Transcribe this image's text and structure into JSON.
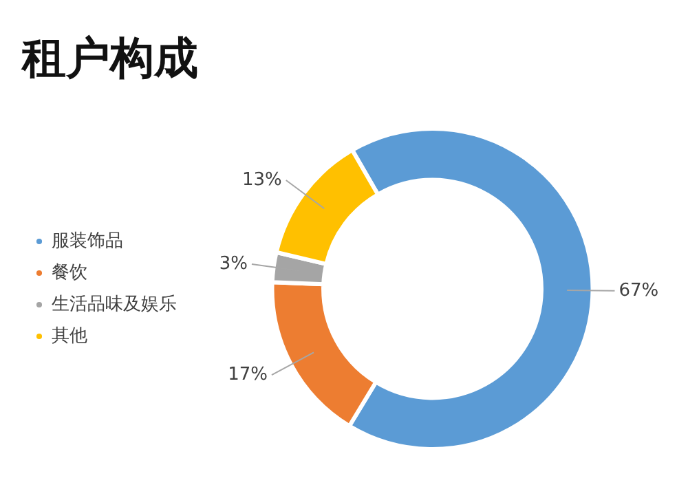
{
  "chart_data": {
    "type": "donut",
    "title": "租户构成",
    "categories": [
      "服装饰品",
      "餐饮",
      "生活品味及娱乐",
      "其他"
    ],
    "values": [
      67,
      17,
      3,
      13
    ],
    "colors": [
      "#5b9bd5",
      "#ed7d31",
      "#a5a5a5",
      "#ffc000"
    ],
    "value_labels": [
      "67%",
      "17%",
      "3%",
      "13%"
    ],
    "legend": "left"
  }
}
